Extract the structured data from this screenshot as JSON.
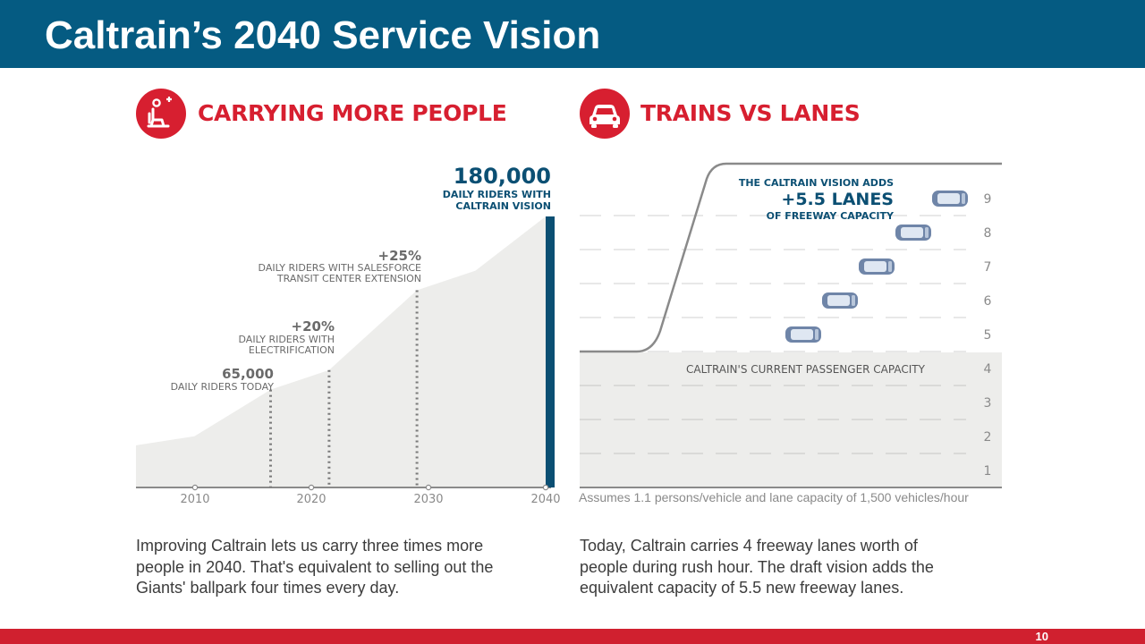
{
  "slide": {
    "title": "Caltrain’s 2040 Service Vision",
    "page_number": "10",
    "colors": {
      "header": "#055b82",
      "accent_red": "#d71f30",
      "navy": "#0b4f73",
      "area": "#ededeb"
    }
  },
  "left": {
    "icon": "seated-passenger-icon",
    "heading": "CARRYING MORE PEOPLE",
    "description": "Improving Caltrain lets us carry three times more people in 2040. That's equivalent to selling out the Giants' ballpark four times every day.",
    "annotations": {
      "vision_value": "180,000",
      "vision_line1": "DAILY RIDERS WITH",
      "vision_line2": "CALTRAIN VISION",
      "salesforce_value": "+25%",
      "salesforce_line1": "DAILY RIDERS WITH SALESFORCE",
      "salesforce_line2": "TRANSIT CENTER EXTENSION",
      "electrification_value": "+20%",
      "electrification_line1": "DAILY RIDERS WITH",
      "electrification_line2": "ELECTRIFICATION",
      "today_value": "65,000",
      "today_line1": "DAILY RIDERS TODAY"
    }
  },
  "right": {
    "icon": "car-icon",
    "heading": "TRAINS VS LANES",
    "description": "Today, Caltrain carries 4 freeway lanes worth of people during rush hour. The draft vision adds the equivalent capacity of 5.5 new freeway lanes.",
    "footnote": "Assumes 1.1 persons/vehicle and lane capacity of 1,500 vehicles/hour",
    "current_capacity_label": "CALTRAIN'S CURRENT PASSENGER CAPACITY",
    "vision_line1": "THE CALTRAIN VISION ADDS",
    "vision_line2": "+5.5 LANES",
    "vision_line3": "OF FREEWAY CAPACITY"
  },
  "chart_data": [
    {
      "type": "area",
      "title": "",
      "x_ticks": [
        "2010",
        "2020",
        "2030",
        "2040"
      ],
      "xlim": [
        2005,
        2040
      ],
      "ylim": [
        0,
        190000
      ],
      "series": [
        {
          "x": [
            2005,
            2010,
            2016.5,
            2021.5,
            2029,
            2034,
            2040
          ],
          "values": [
            28000,
            34000,
            65000,
            78000,
            131000,
            144000,
            180000
          ]
        }
      ],
      "markers": [
        {
          "x": 2016.5,
          "value": 65000,
          "label": "65,000"
        },
        {
          "x": 2021.5,
          "value": 78000,
          "label": "+20%"
        },
        {
          "x": 2029,
          "value": 131000,
          "label": "+25%"
        },
        {
          "x": 2040,
          "value": 180000,
          "label": "180,000"
        }
      ]
    },
    {
      "type": "area",
      "title": "",
      "ylabel": "",
      "lane_ticks": [
        "1",
        "2",
        "3",
        "4",
        "5",
        "6",
        "7",
        "8",
        "9"
      ],
      "current_lanes": 4,
      "added_lanes": 5.5,
      "cars_in_lanes": [
        5,
        6,
        7,
        8,
        9
      ]
    }
  ]
}
